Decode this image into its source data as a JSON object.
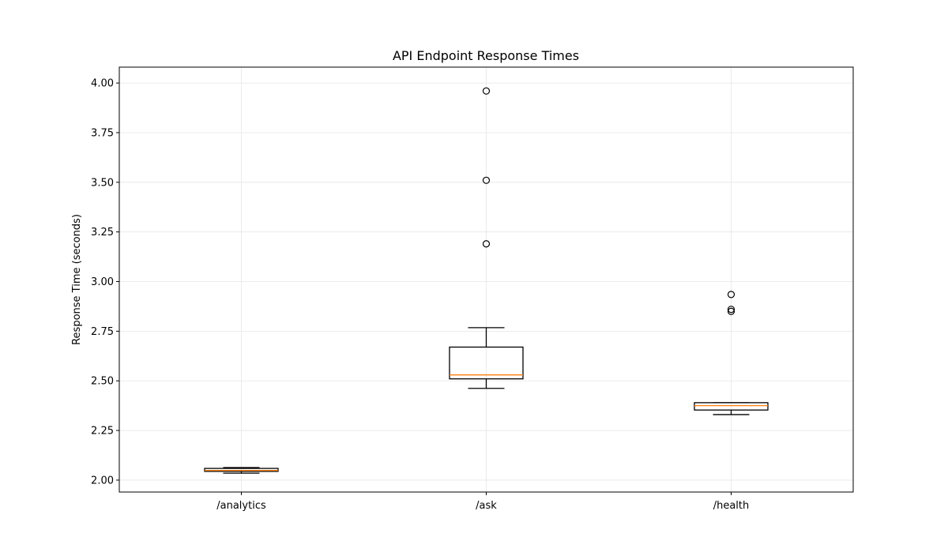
{
  "chart_data": {
    "type": "boxplot",
    "title": "API Endpoint Response Times",
    "xlabel": "",
    "ylabel": "Response Time (seconds)",
    "ylim": [
      1.94,
      4.08
    ],
    "yticks": [
      2.0,
      2.25,
      2.5,
      2.75,
      3.0,
      3.25,
      3.5,
      3.75,
      4.0
    ],
    "ytick_labels": [
      "2.00",
      "2.25",
      "2.50",
      "2.75",
      "3.00",
      "3.25",
      "3.50",
      "3.75",
      "4.00"
    ],
    "grid": true,
    "categories": [
      "/analytics",
      "/ask",
      "/health"
    ],
    "boxes": [
      {
        "category": "/analytics",
        "whisker_low": 2.035,
        "q1": 2.044,
        "median": 2.049,
        "q3": 2.059,
        "whisker_high": 2.063,
        "outliers": []
      },
      {
        "category": "/ask",
        "whisker_low": 2.462,
        "q1": 2.51,
        "median": 2.53,
        "q3": 2.67,
        "whisker_high": 2.768,
        "outliers": [
          3.19,
          3.51,
          3.96
        ]
      },
      {
        "category": "/health",
        "whisker_low": 2.33,
        "q1": 2.353,
        "median": 2.375,
        "q3": 2.39,
        "whisker_high": 2.39,
        "outliers": [
          2.85,
          2.86,
          2.935
        ]
      }
    ],
    "colors": {
      "box": "#000000",
      "median": "#ff7f0e",
      "grid": "#e6e6e6",
      "frame": "#000000"
    }
  }
}
